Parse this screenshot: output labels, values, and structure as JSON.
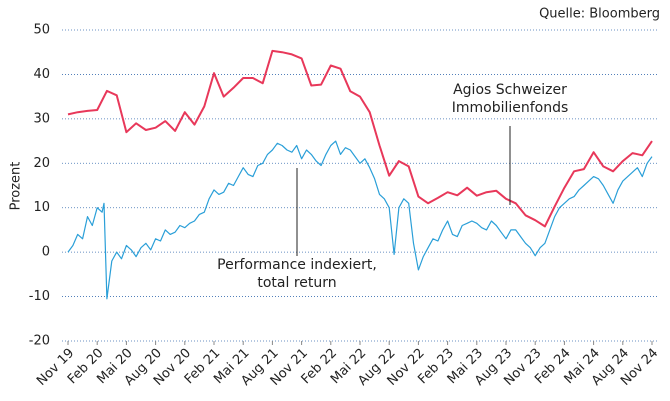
{
  "chart_data": {
    "type": "line",
    "source": "Quelle: Bloomberg",
    "y_label": "Prozent",
    "ylim": [
      -20,
      50
    ],
    "yticks": [
      -20,
      -10,
      0,
      10,
      20,
      30,
      40,
      50
    ],
    "xlim": [
      0,
      60
    ],
    "xticks": [
      {
        "value": 0,
        "label": "Nov 19"
      },
      {
        "value": 3,
        "label": "Feb 20"
      },
      {
        "value": 6,
        "label": "Mai 20"
      },
      {
        "value": 9,
        "label": "Aug 20"
      },
      {
        "value": 12,
        "label": "Nov 20"
      },
      {
        "value": 15,
        "label": "Feb 21"
      },
      {
        "value": 18,
        "label": "Mai 21"
      },
      {
        "value": 21,
        "label": "Aug 21"
      },
      {
        "value": 24,
        "label": "Nov 21"
      },
      {
        "value": 27,
        "label": "Feb 22"
      },
      {
        "value": 30,
        "label": "Mai 22"
      },
      {
        "value": 33,
        "label": "Aug 22"
      },
      {
        "value": 36,
        "label": "Nov 22"
      },
      {
        "value": 39,
        "label": "Feb 23"
      },
      {
        "value": 42,
        "label": "Mai 23"
      },
      {
        "value": 45,
        "label": "Aug 23"
      },
      {
        "value": 48,
        "label": "Nov 23"
      },
      {
        "value": 51,
        "label": "Feb 24"
      },
      {
        "value": 54,
        "label": "Mai 24"
      },
      {
        "value": 57,
        "label": "Aug 24"
      },
      {
        "value": 60,
        "label": "Nov 24"
      }
    ],
    "grid": true,
    "series": [
      {
        "name": "Agios Schweizer Immobilienfonds",
        "label_lines": [
          "Agios Schweizer",
          "Immobilienfonds"
        ],
        "color": "#e8385a",
        "x": [
          0,
          1,
          2,
          3,
          4,
          5,
          6,
          7,
          8,
          9,
          10,
          11,
          12,
          13,
          14,
          15,
          16,
          17,
          18,
          19,
          20,
          21,
          22,
          23,
          24,
          25,
          26,
          27,
          28,
          29,
          30,
          31,
          32,
          33,
          34,
          35,
          36,
          37,
          38,
          39,
          40,
          41,
          42,
          43,
          44,
          45,
          46,
          47,
          48,
          49,
          50,
          51,
          52,
          53,
          54,
          55,
          56,
          57,
          58,
          59,
          60
        ],
        "values": [
          31,
          31.5,
          31.8,
          32,
          36.3,
          35.3,
          27,
          29,
          27.5,
          28,
          29.5,
          27.3,
          31.5,
          28.7,
          32.8,
          40.3,
          35,
          37,
          39.2,
          39.2,
          38,
          45.3,
          45,
          44.5,
          43.6,
          37.5,
          37.7,
          42,
          41.3,
          36.2,
          35,
          31.5,
          24,
          17.2,
          20.5,
          19.3,
          12.5,
          11,
          12.2,
          13.5,
          12.8,
          14.5,
          12.7,
          13.5,
          13.8,
          12,
          11,
          8.3,
          7.2,
          5.8,
          10.3,
          14.5,
          18.2,
          18.7,
          22.5,
          19.3,
          18.2,
          20.5,
          22.3,
          21.8,
          25
        ]
      },
      {
        "name": "Performance indexiert, total return",
        "label_lines": [
          "Performance indexiert,",
          "total return"
        ],
        "color": "#2a9fd8",
        "x": [
          0,
          0.5,
          1,
          1.5,
          2,
          2.5,
          3,
          3.5,
          3.7,
          4,
          4.5,
          5,
          5.5,
          6,
          6.5,
          7,
          7.5,
          8,
          8.5,
          9,
          9.5,
          10,
          10.5,
          11,
          11.5,
          12,
          12.5,
          13,
          13.5,
          14,
          14.5,
          15,
          15.5,
          16,
          16.5,
          17,
          17.5,
          18,
          18.5,
          19,
          19.5,
          20,
          20.5,
          21,
          21.5,
          22,
          22.5,
          23,
          23.5,
          24,
          24.5,
          25,
          25.5,
          26,
          26.5,
          27,
          27.5,
          28,
          28.5,
          29,
          29.5,
          30,
          30.5,
          31,
          31.5,
          32,
          32.5,
          33,
          33.5,
          34,
          34.5,
          35,
          35.5,
          36,
          36.5,
          37,
          37.5,
          38,
          38.5,
          39,
          39.5,
          40,
          40.5,
          41,
          41.5,
          42,
          42.5,
          43,
          43.5,
          44,
          44.5,
          45,
          45.5,
          46,
          46.5,
          47,
          47.5,
          48,
          48.5,
          49,
          49.5,
          50,
          50.5,
          51,
          51.5,
          52,
          52.5,
          53,
          53.5,
          54,
          54.5,
          55,
          55.5,
          56,
          56.5,
          57,
          57.5,
          58,
          58.5,
          59,
          59.5,
          60
        ],
        "values": [
          0,
          1.5,
          4,
          3,
          8,
          6,
          10,
          9,
          11,
          -10.5,
          -2,
          0,
          -1.5,
          1.5,
          0.5,
          -1,
          1,
          2,
          0.5,
          3,
          2.5,
          5,
          4,
          4.5,
          6,
          5.5,
          6.5,
          7,
          8.5,
          9,
          12,
          14,
          13,
          13.5,
          15.5,
          15,
          17,
          19,
          17.5,
          17,
          19.5,
          20,
          22,
          23,
          24.5,
          24,
          23,
          22.5,
          24,
          21,
          23,
          22,
          20.5,
          19.5,
          22,
          24,
          25,
          22,
          23.5,
          23,
          21.5,
          20,
          21,
          19,
          16.5,
          13,
          12,
          10,
          -0.5,
          10,
          12,
          11,
          2,
          -4,
          -1,
          1,
          3,
          2.5,
          5,
          7,
          4,
          3.5,
          6,
          6.5,
          7,
          6.5,
          5.5,
          5,
          7,
          6,
          4.5,
          3,
          5,
          5,
          3.5,
          2,
          1,
          -0.8,
          1,
          2,
          5,
          8,
          10,
          11,
          12,
          12.5,
          14,
          15,
          16,
          17,
          16.5,
          15,
          13,
          11,
          14,
          16,
          17,
          18,
          19,
          17,
          20,
          21.5
        ]
      }
    ]
  }
}
